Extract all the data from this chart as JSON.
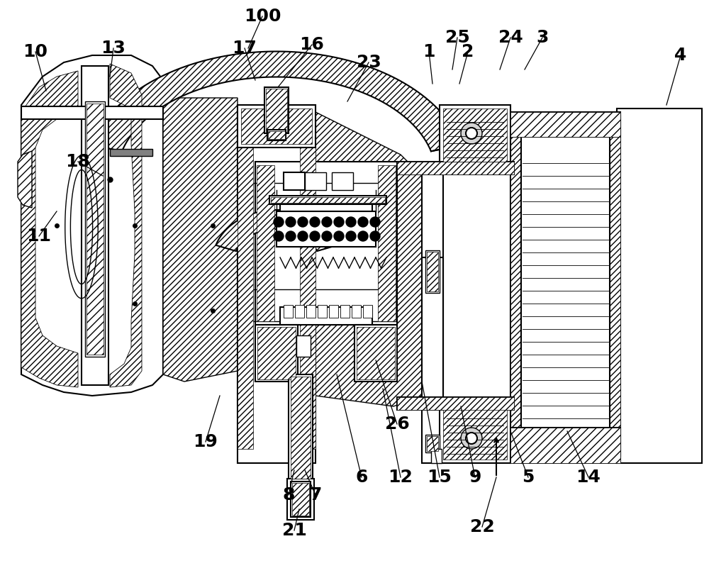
{
  "bg_color": "#ffffff",
  "line_color": "#000000",
  "figsize": [
    10.0,
    8.08
  ],
  "dpi": 100,
  "image_b64": ""
}
